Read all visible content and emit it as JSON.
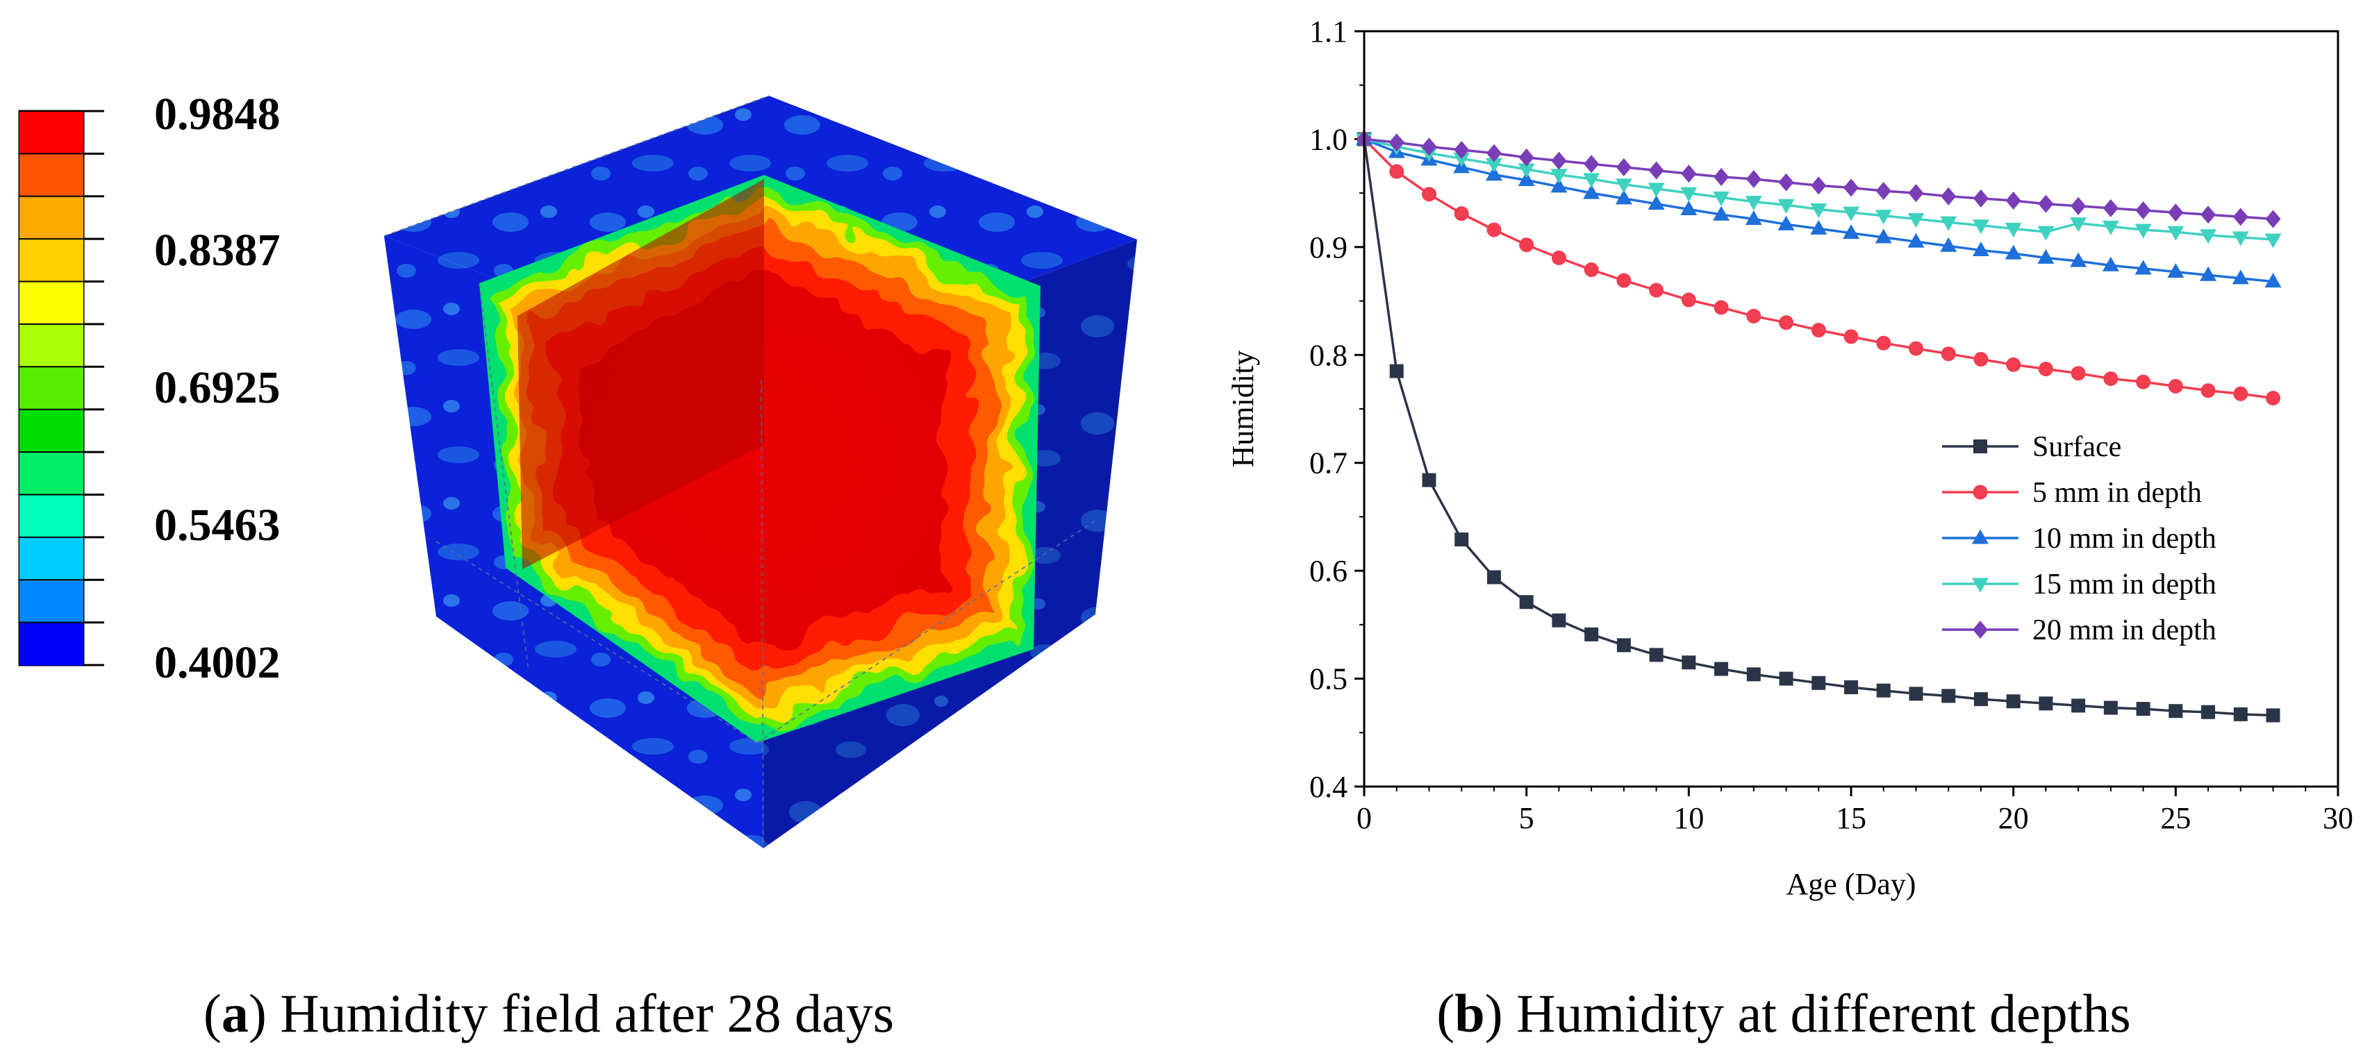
{
  "panel_a": {
    "caption_letter": "a",
    "caption_text": " Humidity field after 28 days",
    "colorbar": {
      "labels": [
        "0.9848",
        "0.8387",
        "0.6925",
        "0.5463",
        "0.4002"
      ],
      "colors": [
        "#ff0000",
        "#ff5500",
        "#ffaa00",
        "#ffd000",
        "#ffff00",
        "#aaff00",
        "#55ee00",
        "#00dd00",
        "#00ee66",
        "#00ffbb",
        "#00ccff",
        "#0088ff",
        "#0000ff"
      ]
    }
  },
  "panel_b": {
    "caption_letter": "b",
    "caption_text": " Humidity at different depths"
  },
  "chart_data": {
    "type": "line",
    "title": "",
    "xlabel": "Age (Day)",
    "ylabel": "Humidity",
    "xlim": [
      0,
      30
    ],
    "ylim": [
      0.4,
      1.1
    ],
    "xticks": [
      "0",
      "5",
      "10",
      "15",
      "20",
      "25",
      "30"
    ],
    "yticks": [
      "0.4",
      "0.5",
      "0.6",
      "0.7",
      "0.8",
      "0.9",
      "1.0",
      "1.1"
    ],
    "x": [
      0,
      1,
      2,
      3,
      4,
      5,
      6,
      7,
      8,
      9,
      10,
      11,
      12,
      13,
      14,
      15,
      16,
      17,
      18,
      19,
      20,
      21,
      22,
      23,
      24,
      25,
      26,
      27,
      28
    ],
    "legend_position": "right",
    "series": [
      {
        "name": "Surface",
        "color": "#2b3548",
        "marker": "square",
        "values": [
          1.0,
          0.785,
          0.684,
          0.629,
          0.594,
          0.571,
          0.554,
          0.541,
          0.531,
          0.522,
          0.515,
          0.509,
          0.504,
          0.5,
          0.496,
          0.492,
          0.489,
          0.486,
          0.484,
          0.481,
          0.479,
          0.477,
          0.475,
          0.473,
          0.472,
          0.47,
          0.469,
          0.467,
          0.466
        ]
      },
      {
        "name": "5 mm in depth",
        "color": "#f23c50",
        "marker": "circle",
        "values": [
          1.0,
          0.97,
          0.949,
          0.931,
          0.916,
          0.902,
          0.89,
          0.879,
          0.869,
          0.86,
          0.851,
          0.844,
          0.836,
          0.83,
          0.823,
          0.817,
          0.811,
          0.806,
          0.801,
          0.796,
          0.791,
          0.787,
          0.783,
          0.778,
          0.775,
          0.771,
          0.767,
          0.764,
          0.76
        ]
      },
      {
        "name": "10 mm in depth",
        "color": "#1e6fd9",
        "marker": "triangle-up",
        "values": [
          1.0,
          0.988,
          0.981,
          0.974,
          0.967,
          0.962,
          0.956,
          0.95,
          0.945,
          0.94,
          0.935,
          0.93,
          0.926,
          0.921,
          0.917,
          0.913,
          0.909,
          0.905,
          0.901,
          0.897,
          0.894,
          0.89,
          0.887,
          0.883,
          0.88,
          0.877,
          0.874,
          0.871,
          0.868
        ]
      },
      {
        "name": "15 mm in depth",
        "color": "#3fd1c0",
        "marker": "triangle-down",
        "values": [
          1.0,
          0.993,
          0.987,
          0.982,
          0.977,
          0.972,
          0.967,
          0.963,
          0.958,
          0.954,
          0.95,
          0.946,
          0.942,
          0.939,
          0.935,
          0.932,
          0.929,
          0.926,
          0.923,
          0.92,
          0.917,
          0.914,
          0.922,
          0.919,
          0.916,
          0.914,
          0.911,
          0.909,
          0.907
        ]
      },
      {
        "name": "20 mm in depth",
        "color": "#7a3db8",
        "marker": "diamond",
        "values": [
          1.0,
          0.997,
          0.993,
          0.99,
          0.987,
          0.983,
          0.98,
          0.977,
          0.974,
          0.971,
          0.968,
          0.965,
          0.963,
          0.96,
          0.957,
          0.955,
          0.952,
          0.95,
          0.947,
          0.945,
          0.943,
          0.94,
          0.938,
          0.936,
          0.934,
          0.932,
          0.93,
          0.928,
          0.926
        ]
      }
    ]
  }
}
